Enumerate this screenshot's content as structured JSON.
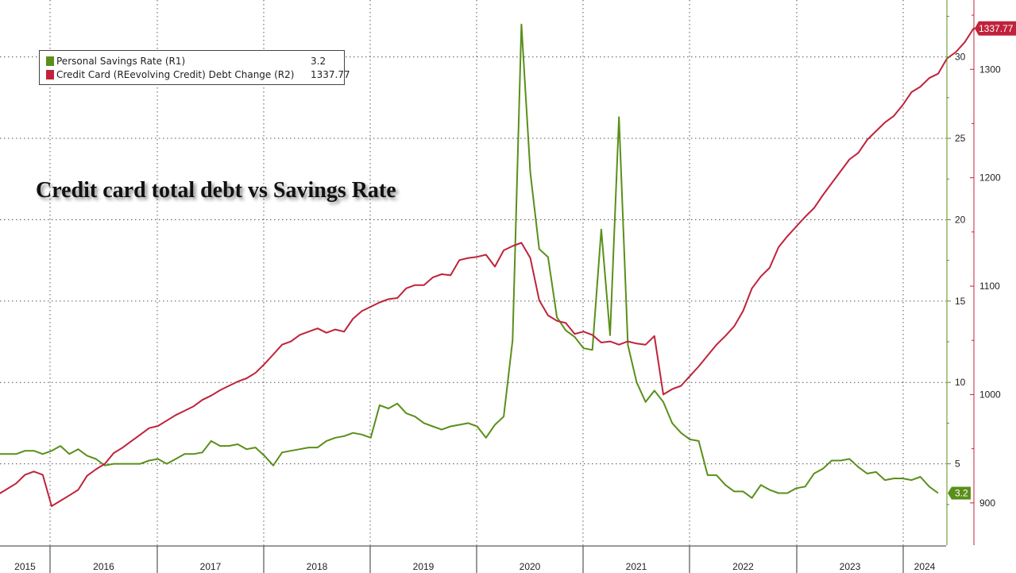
{
  "headline": "Credit card total debt vs Savings Rate",
  "legend": {
    "items": [
      {
        "label": "Personal Savings Rate (R1)",
        "value": "3.2",
        "color": "#5a8f1a"
      },
      {
        "label": "Credit Card (REevolving Credit) Debt Change (R2)",
        "value": "1337.77",
        "color": "#c0223b"
      }
    ]
  },
  "chart_data": {
    "type": "line",
    "x_axis": {
      "labels": [
        "2015",
        "2016",
        "2017",
        "2018",
        "2019",
        "2020",
        "2021",
        "2022",
        "2023",
        "2024"
      ]
    },
    "axes": {
      "r1": {
        "name": "R1",
        "ticks": [
          5,
          10,
          15,
          20,
          25,
          30
        ],
        "range": [
          0,
          33.5
        ],
        "color": "#5a8f1a"
      },
      "r2": {
        "name": "R2",
        "ticks": [
          900,
          1000,
          1100,
          1200,
          1300
        ],
        "range": [
          861,
          1364
        ],
        "color": "#c0223b"
      }
    },
    "grid": true,
    "legend_position": "top-left",
    "last_value_labels": {
      "r1": "3.2",
      "r2": "1337.77"
    },
    "series": [
      {
        "name": "Personal Savings Rate (R1)",
        "axis": "r1",
        "color": "#5a8f1a",
        "values": [
          5.6,
          5.6,
          5.6,
          5.8,
          5.8,
          5.6,
          5.8,
          6.1,
          5.6,
          5.9,
          5.5,
          5.3,
          4.9,
          5.0,
          5.0,
          5.0,
          5.0,
          5.2,
          5.3,
          5.0,
          5.3,
          5.6,
          5.6,
          5.7,
          6.4,
          6.1,
          6.1,
          6.2,
          5.9,
          6.0,
          5.5,
          4.9,
          5.7,
          5.8,
          5.9,
          6.0,
          6.0,
          6.4,
          6.6,
          6.7,
          6.9,
          6.8,
          6.6,
          8.6,
          8.4,
          8.7,
          8.1,
          7.9,
          7.5,
          7.3,
          7.1,
          7.3,
          7.4,
          7.5,
          7.3,
          6.6,
          7.4,
          7.9,
          12.6,
          32.0,
          22.9,
          18.2,
          17.7,
          14.0,
          13.2,
          12.8,
          12.1,
          12.0,
          19.4,
          12.9,
          26.3,
          12.3,
          10.0,
          8.8,
          9.5,
          8.8,
          7.5,
          6.9,
          6.5,
          6.4,
          4.3,
          4.3,
          3.7,
          3.3,
          3.3,
          2.9,
          3.7,
          3.4,
          3.2,
          3.2,
          3.5,
          3.6,
          4.4,
          4.7,
          5.2,
          5.2,
          5.3,
          4.8,
          4.4,
          4.5,
          4.0,
          4.1,
          4.1,
          4.0,
          4.2,
          3.6,
          3.2
        ]
      },
      {
        "name": "Credit Card (REevolving Credit) Debt Change (R2)",
        "axis": "r2",
        "color": "#c0223b",
        "values": [
          908,
          913,
          918,
          926,
          929,
          926,
          897,
          902,
          907,
          912,
          925,
          931,
          936,
          946,
          951,
          957,
          963,
          969,
          971,
          976,
          981,
          985,
          989,
          995,
          999,
          1004,
          1008,
          1012,
          1015,
          1020,
          1028,
          1037,
          1046,
          1049,
          1055,
          1058,
          1061,
          1057,
          1060,
          1058,
          1070,
          1077,
          1081,
          1085,
          1088,
          1089,
          1098,
          1101,
          1101,
          1108,
          1111,
          1110,
          1124,
          1126,
          1127,
          1129,
          1118,
          1133,
          1137,
          1140,
          1126,
          1087,
          1073,
          1068,
          1066,
          1056,
          1058,
          1055,
          1048,
          1049,
          1046,
          1049,
          1047,
          1046,
          1054,
          1000,
          1005,
          1008,
          1017,
          1026,
          1036,
          1046,
          1054,
          1063,
          1077,
          1098,
          1109,
          1117,
          1136,
          1146,
          1155,
          1164,
          1172,
          1184,
          1195,
          1206,
          1217,
          1223,
          1235,
          1243,
          1251,
          1257,
          1267,
          1279,
          1284,
          1292,
          1296,
          1310,
          1316,
          1325,
          1337.77,
          1337.77
        ]
      }
    ]
  }
}
